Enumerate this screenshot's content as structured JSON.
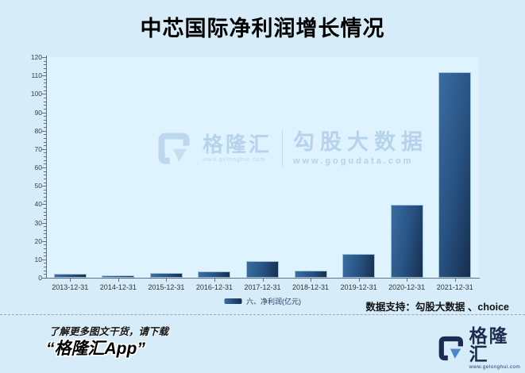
{
  "title": "中芯国际净利润增长情况",
  "chart_data": {
    "type": "bar",
    "title": "中芯国际净利润增长情况",
    "categories": [
      "2013-12-31",
      "2014-12-31",
      "2015-12-31",
      "2016-12-31",
      "2017-12-31",
      "2018-12-31",
      "2019-12-31",
      "2020-12-31",
      "2021-12-31"
    ],
    "values": [
      2.2,
      1.2,
      2.6,
      3.6,
      9.2,
      4.0,
      12.8,
      39.8,
      112.0
    ],
    "series_name": "六、净利润(亿元)",
    "xlabel": "",
    "ylabel": "",
    "ylim": [
      0,
      120
    ],
    "y_major_step": 10,
    "y_minor_step": 2,
    "grid": false,
    "legend_position": "bottom"
  },
  "legend": {
    "label": "六、净利润(亿元)"
  },
  "watermark": {
    "brand": "格隆汇",
    "brand_url": "www.gelonghui.com",
    "partner": "勾股大数据",
    "partner_url": "www.gogudata.com"
  },
  "footer": {
    "data_support": "数据支持：勾股大数据 、choice",
    "promo_line1": "了解更多图文干货，请下载",
    "promo_line2": "“格隆汇App”",
    "logo_text": "格隆汇",
    "logo_url": "www.gelonghui.com"
  },
  "colors": {
    "background": "#d6ecf8",
    "plot_background": "#def3fd",
    "axis": "#5f7182",
    "bar_gradient_start": "#3a6da3",
    "bar_gradient_end": "#152e4d",
    "logo_navy": "#1d2b50",
    "logo_blue": "#4d86c8",
    "watermark_blue": "#b7d3ec"
  }
}
